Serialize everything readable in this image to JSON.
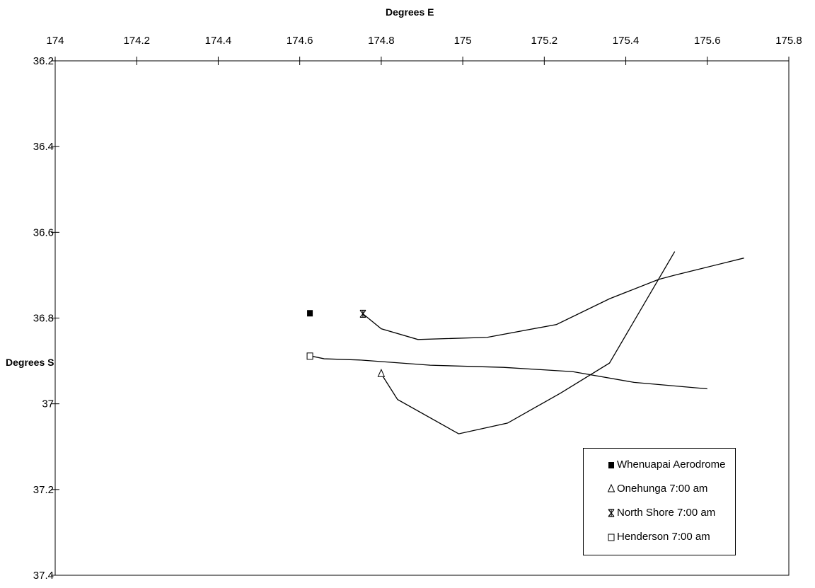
{
  "chart_data": {
    "type": "line",
    "xlabel": "Degrees E",
    "ylabel": "Degrees S",
    "xlim": [
      174,
      175.8
    ],
    "ylim": [
      36.2,
      37.4
    ],
    "y_inverted": true,
    "x_ticks": [
      "174",
      "174.2",
      "174.4",
      "174.6",
      "174.8",
      "175",
      "175.2",
      "175.4",
      "175.6",
      "175.8"
    ],
    "y_ticks": [
      "36.2",
      "36.4",
      "36.6",
      "36.8",
      "37",
      "37.2",
      "37.4"
    ],
    "grid": false,
    "legend_position": "bottom-right",
    "series": [
      {
        "name": "Whenuapai Aerodrome",
        "marker": "filled-square",
        "points": [
          [
            174.625,
            36.788
          ]
        ]
      },
      {
        "name": "Onehunga 7:00 am",
        "marker": "triangle",
        "points": [
          [
            174.8,
            36.93
          ],
          [
            174.84,
            36.99
          ],
          [
            174.99,
            37.07
          ],
          [
            175.11,
            37.045
          ],
          [
            175.24,
            36.975
          ],
          [
            175.36,
            36.905
          ],
          [
            175.52,
            36.645
          ]
        ]
      },
      {
        "name": "North Shore 7:00 am",
        "marker": "asterisk",
        "points": [
          [
            174.755,
            36.79
          ],
          [
            174.8,
            36.825
          ],
          [
            174.89,
            36.85
          ],
          [
            175.06,
            36.845
          ],
          [
            175.23,
            36.815
          ],
          [
            175.36,
            36.755
          ],
          [
            175.48,
            36.71
          ],
          [
            175.52,
            36.7
          ],
          [
            175.69,
            36.66
          ]
        ]
      },
      {
        "name": "Henderson 7:00 am",
        "marker": "open-square",
        "points": [
          [
            174.625,
            36.888
          ],
          [
            174.66,
            36.895
          ],
          [
            174.75,
            36.898
          ],
          [
            174.92,
            36.91
          ],
          [
            175.1,
            36.915
          ],
          [
            175.27,
            36.925
          ],
          [
            175.42,
            36.95
          ],
          [
            175.6,
            36.965
          ]
        ]
      }
    ]
  }
}
